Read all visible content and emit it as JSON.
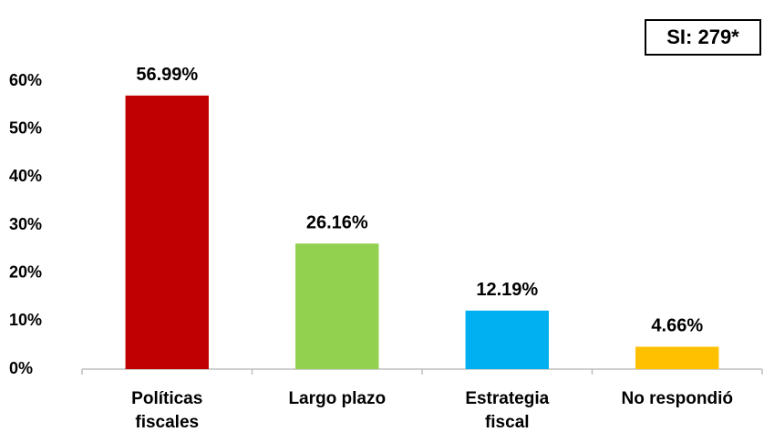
{
  "chart_data": {
    "type": "bar",
    "annotation": "SI: 279*",
    "categories": [
      [
        "Políticas",
        "fiscales"
      ],
      [
        "Largo plazo"
      ],
      [
        "Estrategia",
        "fiscal"
      ],
      [
        "No respondió"
      ]
    ],
    "values": [
      56.99,
      26.16,
      12.19,
      4.66
    ],
    "value_labels": [
      "56.99%",
      "26.16%",
      "12.19%",
      "4.66%"
    ],
    "colors": [
      "#c00000",
      "#92d050",
      "#00b0f0",
      "#ffc000"
    ],
    "ylim": [
      0,
      60
    ],
    "yticks": [
      {
        "value": 0,
        "label": "0%"
      },
      {
        "value": 10,
        "label": "10%"
      },
      {
        "value": 20,
        "label": "20%"
      },
      {
        "value": 30,
        "label": "30%"
      },
      {
        "value": 40,
        "label": "40%"
      },
      {
        "value": 50,
        "label": "50%"
      },
      {
        "value": 60,
        "label": "60%"
      }
    ],
    "grid": false
  }
}
